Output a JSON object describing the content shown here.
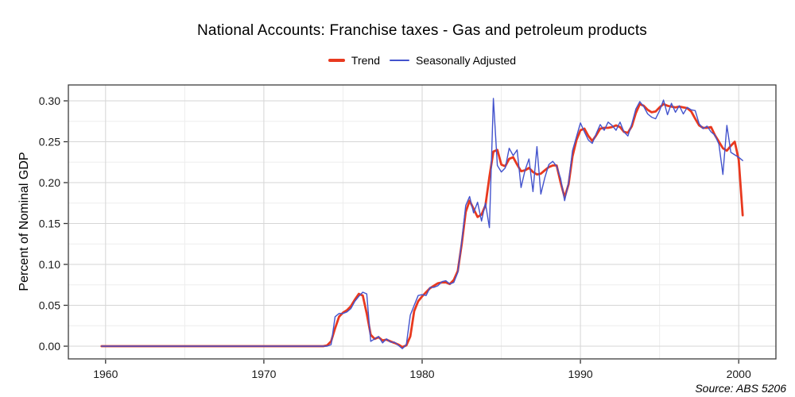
{
  "header": {
    "title": "National Accounts: Franchise taxes - Gas and petroleum products"
  },
  "legend": {
    "items": [
      {
        "label": "Trend",
        "color": "#e8391f"
      },
      {
        "label": "Seasonally Adjusted",
        "color": "#4353cd"
      }
    ]
  },
  "footer": {
    "source": "Source: ABS 5206"
  },
  "chart_data": {
    "type": "line",
    "title": "National Accounts: Franchise taxes - Gas and petroleum products",
    "xlabel": "",
    "ylabel": "Percent of Nominal GDP",
    "source": "Source: ABS 5206",
    "grid": true,
    "legend_position": "top-center",
    "x_range": [
      1957.65,
      2002.35
    ],
    "y_range": [
      -0.0155,
      0.3194
    ],
    "x_ticks": {
      "major": [
        1960,
        1970,
        1980,
        1990,
        2000
      ],
      "minor": [
        1965,
        1975,
        1985,
        1995
      ],
      "labels": [
        "1960",
        "1970",
        "1980",
        "1990",
        "2000"
      ]
    },
    "y_ticks": {
      "major": [
        0.0,
        0.05,
        0.1,
        0.15,
        0.2,
        0.25,
        0.3
      ],
      "minor": [
        0.025,
        0.075,
        0.125,
        0.175,
        0.225,
        0.275
      ],
      "labels": [
        "0.00",
        "0.05",
        "0.10",
        "0.15",
        "0.20",
        "0.25",
        "0.30"
      ]
    },
    "colors": {
      "trend": "#e8391f",
      "seasonally_adjusted": "#4353cd",
      "grid_major": "#d6d6d6",
      "grid_minor": "#ededed",
      "panel_border": "#3c3c3c",
      "tick_mark": "#333333",
      "tick_label": "#1a1a1a"
    },
    "x_unit": "year (quarterly observations)",
    "series": [
      {
        "name": "Trend",
        "color": "#e8391f",
        "width": 2.8,
        "start": 1959.75,
        "step": 0.25,
        "values": [
          0,
          0,
          0,
          0,
          0,
          0,
          0,
          0,
          0,
          0,
          0,
          0,
          0,
          0,
          0,
          0,
          0,
          0,
          0,
          0,
          0,
          0,
          0,
          0,
          0,
          0,
          0,
          0,
          0,
          0,
          0,
          0,
          0,
          0,
          0,
          0,
          0,
          0,
          0,
          0,
          0,
          0,
          0,
          0,
          0,
          0,
          0,
          0,
          0,
          0,
          0,
          0,
          0,
          0,
          0,
          0,
          0,
          0.001,
          0.006,
          0.022,
          0.036,
          0.041,
          0.044,
          0.049,
          0.057,
          0.064,
          0.062,
          0.04,
          0.014,
          0.009,
          0.011,
          0.007,
          0.008,
          0.006,
          0.004,
          0.002,
          -0.001,
          0.001,
          0.012,
          0.043,
          0.055,
          0.061,
          0.066,
          0.071,
          0.074,
          0.077,
          0.078,
          0.078,
          0.076,
          0.081,
          0.092,
          0.125,
          0.164,
          0.178,
          0.168,
          0.158,
          0.161,
          0.172,
          0.207,
          0.238,
          0.24,
          0.222,
          0.22,
          0.229,
          0.231,
          0.222,
          0.214,
          0.215,
          0.218,
          0.213,
          0.21,
          0.211,
          0.215,
          0.219,
          0.221,
          0.221,
          0.2,
          0.182,
          0.198,
          0.232,
          0.252,
          0.264,
          0.266,
          0.257,
          0.251,
          0.258,
          0.266,
          0.267,
          0.267,
          0.268,
          0.27,
          0.268,
          0.262,
          0.261,
          0.269,
          0.285,
          0.296,
          0.294,
          0.289,
          0.286,
          0.287,
          0.292,
          0.296,
          0.294,
          0.293,
          0.292,
          0.293,
          0.292,
          0.291,
          0.287,
          0.278,
          0.27,
          0.267,
          0.267,
          0.268,
          0.258,
          0.25,
          0.242,
          0.239,
          0.245,
          0.25,
          0.228,
          0.16
        ]
      },
      {
        "name": "Seasonally Adjusted",
        "color": "#4353cd",
        "width": 1.4,
        "start": 1959.75,
        "step": 0.25,
        "values": [
          0,
          0,
          0,
          0,
          0,
          0,
          0,
          0,
          0,
          0,
          0,
          0,
          0,
          0,
          0,
          0,
          0,
          0,
          0,
          0,
          0,
          0,
          0,
          0,
          0,
          0,
          0,
          0,
          0,
          0,
          0,
          0,
          0,
          0,
          0,
          0,
          0,
          0,
          0,
          0,
          0,
          0,
          0,
          0,
          0,
          0,
          0,
          0,
          0,
          0,
          0,
          0,
          0,
          0,
          0,
          0,
          0,
          0.0,
          0.002,
          0.036,
          0.04,
          0.04,
          0.042,
          0.046,
          0.055,
          0.061,
          0.066,
          0.064,
          0.006,
          0.009,
          0.012,
          0.004,
          0.009,
          0.005,
          0.005,
          0.001,
          -0.003,
          0.002,
          0.038,
          0.05,
          0.062,
          0.063,
          0.062,
          0.072,
          0.072,
          0.074,
          0.079,
          0.08,
          0.076,
          0.078,
          0.09,
          0.128,
          0.172,
          0.183,
          0.163,
          0.176,
          0.153,
          0.175,
          0.145,
          0.303,
          0.221,
          0.213,
          0.218,
          0.242,
          0.233,
          0.24,
          0.194,
          0.215,
          0.229,
          0.189,
          0.244,
          0.186,
          0.206,
          0.222,
          0.226,
          0.22,
          0.205,
          0.178,
          0.2,
          0.239,
          0.256,
          0.273,
          0.262,
          0.252,
          0.248,
          0.26,
          0.271,
          0.264,
          0.274,
          0.27,
          0.264,
          0.274,
          0.262,
          0.257,
          0.272,
          0.29,
          0.299,
          0.293,
          0.284,
          0.28,
          0.278,
          0.288,
          0.301,
          0.283,
          0.297,
          0.286,
          0.294,
          0.284,
          0.292,
          0.289,
          0.288,
          0.272,
          0.266,
          0.269,
          0.262,
          0.258,
          0.247,
          0.21,
          0.27,
          0.237,
          0.234,
          0.231,
          0.227
        ]
      }
    ]
  }
}
